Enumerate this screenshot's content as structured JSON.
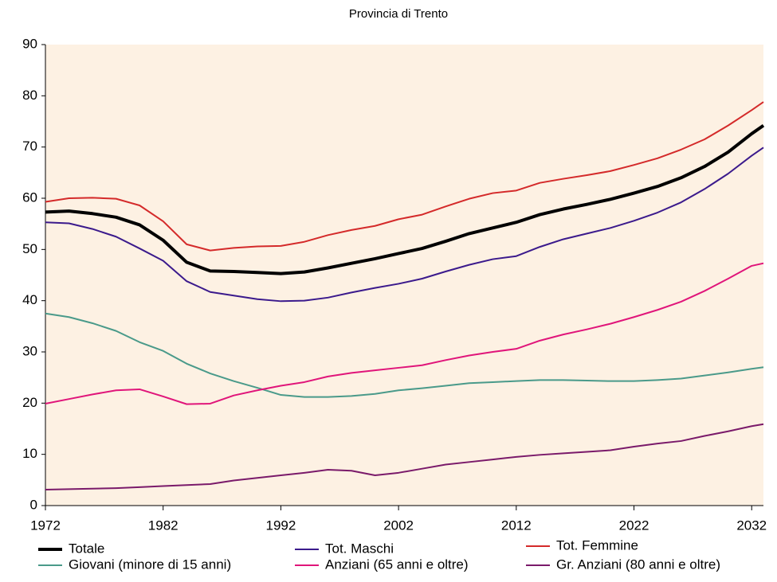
{
  "chart_data": {
    "type": "line",
    "title": "Provincia di Trento",
    "x": [
      1972,
      1974,
      1976,
      1978,
      1980,
      1982,
      1984,
      1986,
      1988,
      1990,
      1992,
      1994,
      1996,
      1998,
      2000,
      2002,
      2004,
      2006,
      2008,
      2010,
      2012,
      2014,
      2016,
      2018,
      2020,
      2022,
      2024,
      2026,
      2028,
      2030,
      2032,
      2033
    ],
    "xlim": [
      1972,
      2033
    ],
    "xticks": [
      1972,
      1982,
      1992,
      2002,
      2012,
      2022,
      2032
    ],
    "ylim": [
      0,
      90
    ],
    "yticks": [
      0,
      10,
      20,
      30,
      40,
      50,
      60,
      70,
      80,
      90
    ],
    "grid": false,
    "legend": "bottom",
    "series": [
      {
        "name": "Totale",
        "color": "#000000",
        "values": [
          57.3,
          57.5,
          57.0,
          56.3,
          54.8,
          51.8,
          47.5,
          45.8,
          45.7,
          45.5,
          45.3,
          45.6,
          46.4,
          47.3,
          48.2,
          49.2,
          50.2,
          51.6,
          53.1,
          54.2,
          55.3,
          56.8,
          57.9,
          58.8,
          59.8,
          61.0,
          62.3,
          64.0,
          66.2,
          69.0,
          72.6,
          74.2
        ]
      },
      {
        "name": "Tot. Maschi",
        "color": "#3b1a8c",
        "values": [
          55.3,
          55.1,
          54.0,
          52.5,
          50.2,
          47.8,
          43.8,
          41.7,
          41.0,
          40.3,
          39.9,
          40.0,
          40.6,
          41.6,
          42.5,
          43.3,
          44.3,
          45.7,
          47.0,
          48.1,
          48.7,
          50.5,
          52.0,
          53.1,
          54.2,
          55.6,
          57.2,
          59.2,
          61.8,
          64.8,
          68.3,
          69.9
        ]
      },
      {
        "name": "Tot. Femmine",
        "color": "#d42a2a",
        "values": [
          59.3,
          60.0,
          60.1,
          59.9,
          58.6,
          55.5,
          51.0,
          49.8,
          50.3,
          50.6,
          50.7,
          51.5,
          52.8,
          53.8,
          54.6,
          55.9,
          56.8,
          58.4,
          59.9,
          61.0,
          61.5,
          63.0,
          63.8,
          64.5,
          65.3,
          66.5,
          67.8,
          69.5,
          71.5,
          74.2,
          77.2,
          78.8
        ]
      },
      {
        "name": "Giovani (minore di 15 anni)",
        "color": "#4a9a8a",
        "values": [
          37.5,
          36.8,
          35.6,
          34.1,
          31.9,
          30.2,
          27.7,
          25.8,
          24.3,
          23.0,
          21.6,
          21.2,
          21.2,
          21.4,
          21.8,
          22.5,
          22.9,
          23.4,
          23.9,
          24.1,
          24.3,
          24.5,
          24.5,
          24.4,
          24.3,
          24.3,
          24.5,
          24.8,
          25.4,
          26.0,
          26.7,
          27.0
        ]
      },
      {
        "name": "Anziani (65 anni e oltre)",
        "color": "#e0157a",
        "values": [
          19.9,
          20.8,
          21.7,
          22.5,
          22.7,
          21.3,
          19.8,
          19.9,
          21.5,
          22.5,
          23.4,
          24.1,
          25.2,
          25.9,
          26.4,
          26.9,
          27.4,
          28.4,
          29.3,
          30.0,
          30.6,
          32.2,
          33.4,
          34.4,
          35.5,
          36.8,
          38.2,
          39.8,
          41.9,
          44.3,
          46.8,
          47.3
        ]
      },
      {
        "name": "Gr. Anziani (80 anni e oltre)",
        "color": "#7a1a6a",
        "values": [
          3.1,
          3.2,
          3.3,
          3.4,
          3.6,
          3.8,
          4.0,
          4.2,
          4.9,
          5.4,
          5.9,
          6.4,
          7.0,
          6.8,
          5.9,
          6.4,
          7.2,
          8.0,
          8.5,
          9.0,
          9.5,
          9.9,
          10.2,
          10.5,
          10.8,
          11.5,
          12.1,
          12.6,
          13.6,
          14.5,
          15.5,
          15.9
        ]
      }
    ]
  }
}
